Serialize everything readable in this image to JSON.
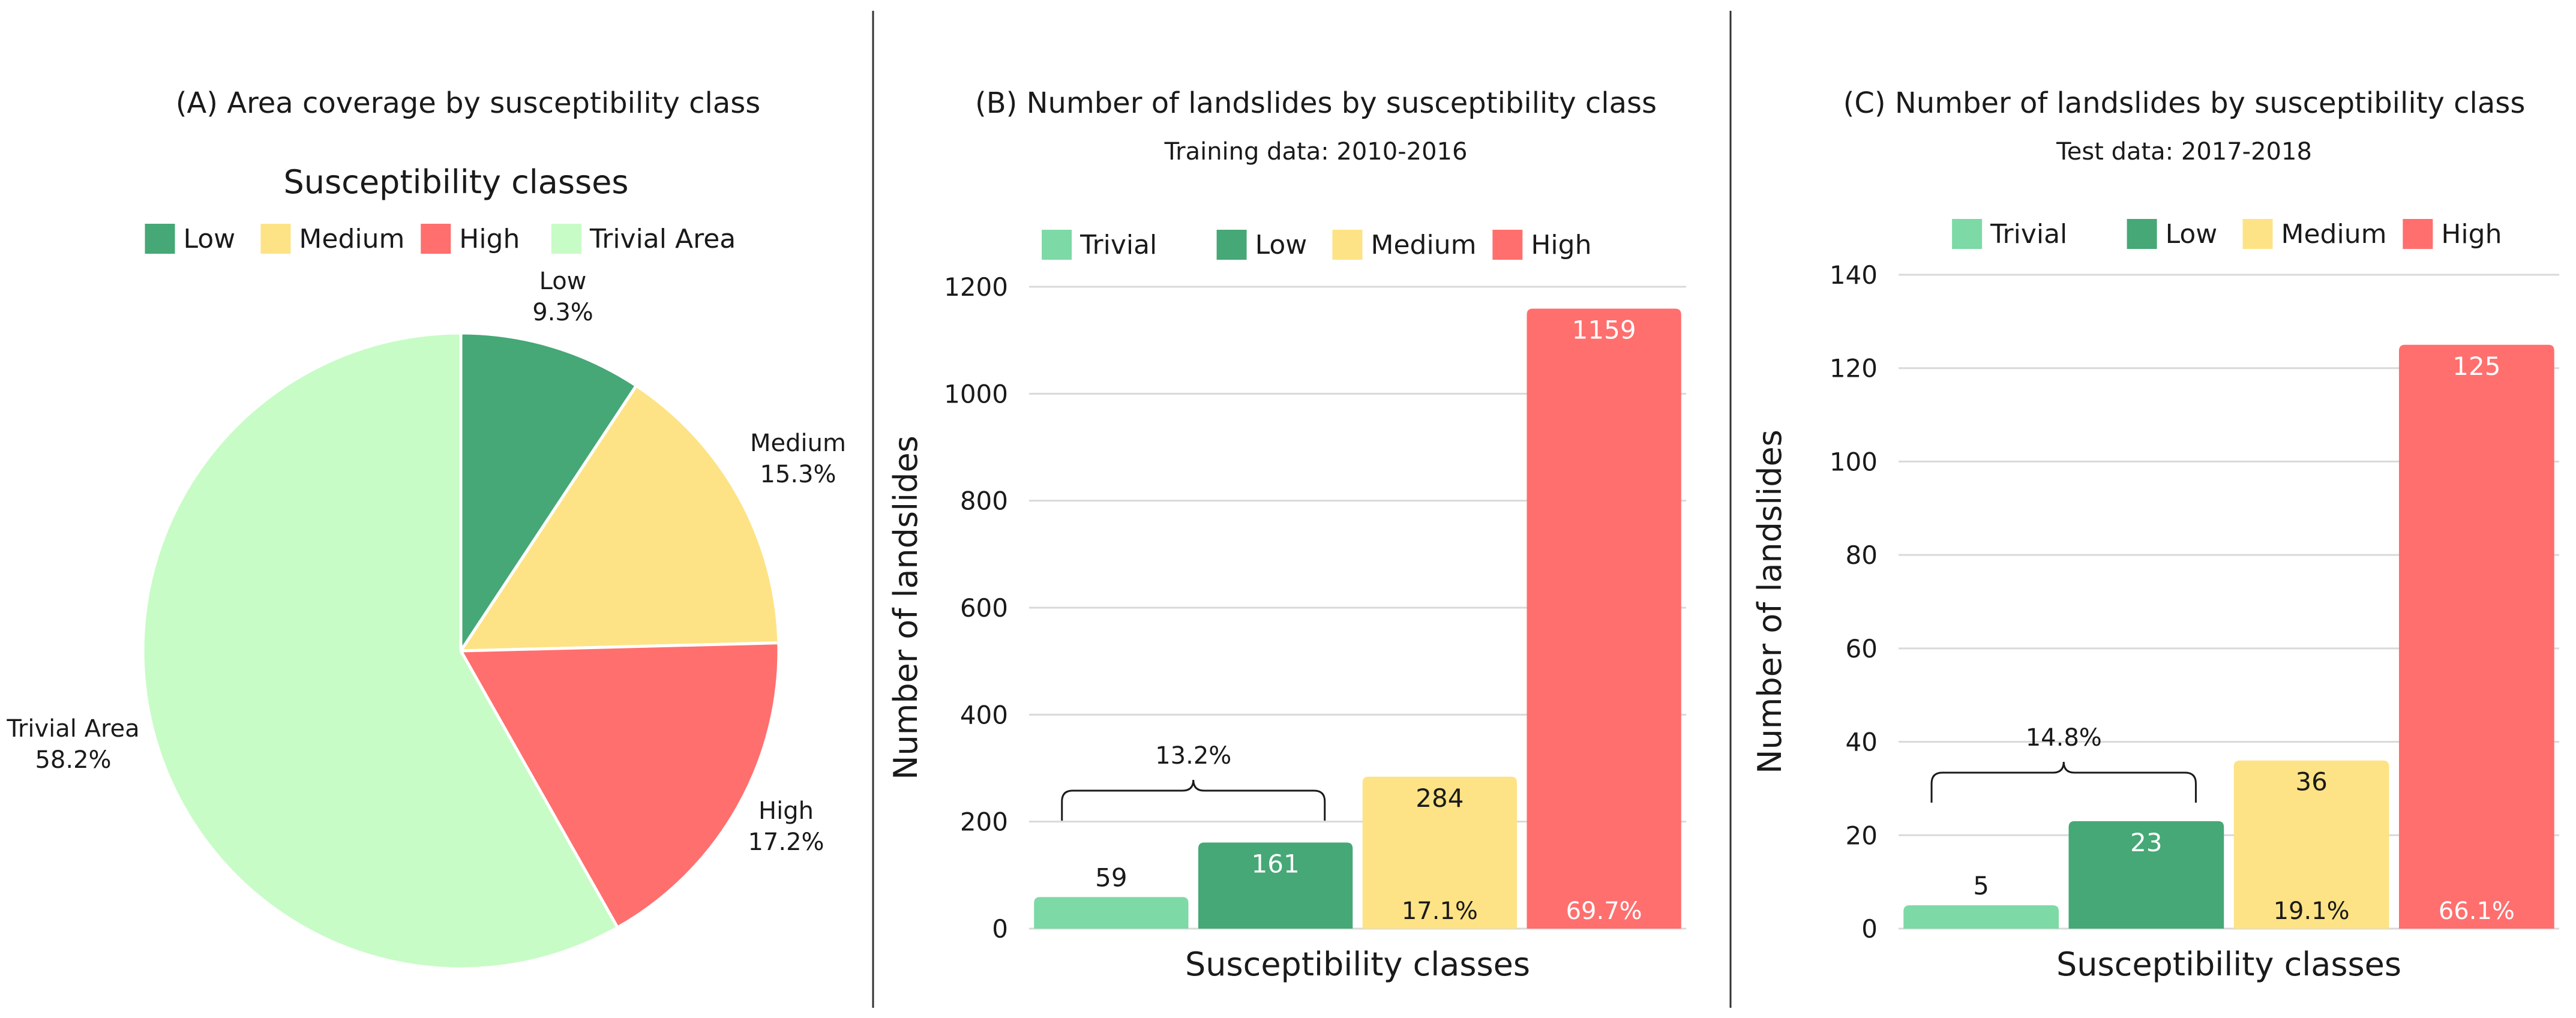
{
  "colors": {
    "trivial_pie": "#c8fcc6",
    "trivial_bar": "#7dd9a6",
    "low": "#45a876",
    "medium": "#fde385",
    "high": "#ff6f6e",
    "grid": "#d9d9d9",
    "divider": "#333333"
  },
  "chart_data": [
    {
      "type": "pie",
      "title": "(A) Area coverage by susceptibility class",
      "legend_title": "Susceptibility classes",
      "legend": [
        "Low",
        "Medium",
        "High",
        "Trivial Area"
      ],
      "slices": [
        {
          "label": "Low",
          "value": 9.3,
          "pct_label": "9.3%"
        },
        {
          "label": "Medium",
          "value": 15.3,
          "pct_label": "15.3%"
        },
        {
          "label": "High",
          "value": 17.2,
          "pct_label": "17.2%"
        },
        {
          "label": "Trivial Area",
          "value": 58.2,
          "pct_label": "58.2%"
        }
      ]
    },
    {
      "type": "bar",
      "title": "(B) Number of landslides by susceptibility class",
      "subtitle": "Training data: 2010-2016",
      "legend": [
        "Trivial",
        "Low",
        "Medium",
        "High"
      ],
      "categories": [
        "Trivial",
        "Low",
        "Medium",
        "High"
      ],
      "values": [
        59,
        161,
        284,
        1159
      ],
      "value_labels": [
        "59",
        "161",
        "284",
        "1159"
      ],
      "percent_annotations": [
        {
          "text": "13.2%",
          "span": [
            "Trivial",
            "Low"
          ],
          "kind": "brace"
        },
        {
          "text": "17.1%",
          "category": "Medium"
        },
        {
          "text": "69.7%",
          "category": "High"
        }
      ],
      "xlabel": "Susceptibility classes",
      "ylabel": "Number of landslides",
      "ylim": [
        0,
        1200
      ],
      "yticks": [
        0,
        200,
        400,
        600,
        800,
        1000,
        1200
      ],
      "grid": true
    },
    {
      "type": "bar",
      "title": "(C) Number of landslides by susceptibility class",
      "subtitle": "Test data: 2017-2018",
      "legend": [
        "Trivial",
        "Low",
        "Medium",
        "High"
      ],
      "categories": [
        "Trivial",
        "Low",
        "Medium",
        "High"
      ],
      "values": [
        5,
        23,
        36,
        125
      ],
      "value_labels": [
        "5",
        "23",
        "36",
        "125"
      ],
      "percent_annotations": [
        {
          "text": "14.8%",
          "span": [
            "Trivial",
            "Low"
          ],
          "kind": "brace"
        },
        {
          "text": "19.1%",
          "category": "Medium"
        },
        {
          "text": "66.1%",
          "category": "High"
        }
      ],
      "xlabel": "Susceptibility classes",
      "ylabel": "Number of landslides",
      "ylim": [
        0,
        140
      ],
      "yticks": [
        0,
        20,
        40,
        60,
        80,
        100,
        120,
        140
      ],
      "grid": true
    }
  ]
}
